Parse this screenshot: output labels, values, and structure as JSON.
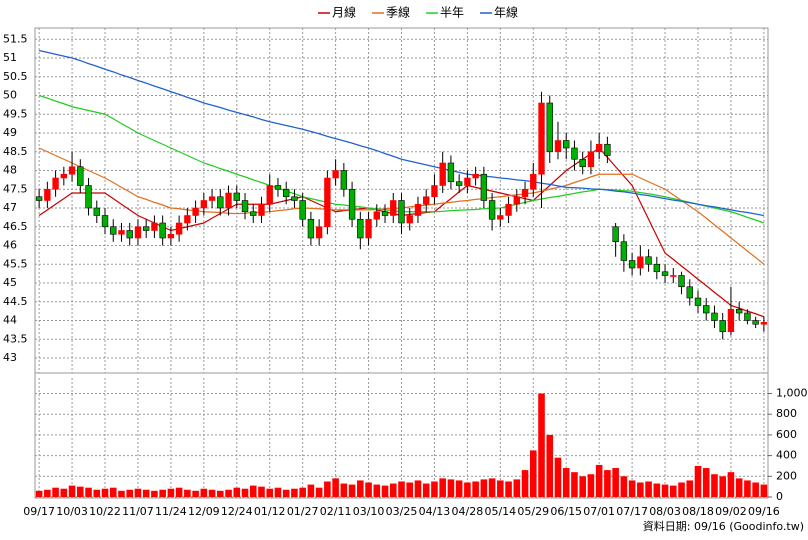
{
  "chart_data": {
    "type": "candlestick",
    "footnote": "資料日期: 09/16 (Goodinfo.tw)",
    "categories": [
      "09/17",
      null,
      null,
      null,
      "10/03",
      null,
      null,
      null,
      "10/22",
      null,
      null,
      null,
      "11/07",
      null,
      null,
      null,
      "11/24",
      null,
      null,
      null,
      "12/09",
      null,
      null,
      null,
      "12/24",
      null,
      null,
      null,
      "01/12",
      null,
      null,
      null,
      "01/27",
      null,
      null,
      null,
      "02/11",
      null,
      null,
      null,
      "03/10",
      null,
      null,
      null,
      "03/25",
      null,
      null,
      null,
      "04/13",
      null,
      null,
      null,
      "04/28",
      null,
      null,
      null,
      "05/14",
      null,
      null,
      null,
      "05/29",
      null,
      null,
      null,
      "06/15",
      null,
      null,
      null,
      "07/01",
      null,
      null,
      null,
      "07/17",
      null,
      null,
      null,
      "08/03",
      null,
      null,
      null,
      "08/18",
      null,
      null,
      null,
      "09/02",
      null,
      null,
      null,
      "09/16"
    ],
    "open": [
      47.3,
      47.2,
      47.5,
      47.8,
      47.9,
      48.1,
      47.6,
      47.0,
      46.8,
      46.5,
      46.3,
      46.4,
      46.2,
      46.5,
      46.4,
      46.6,
      46.2,
      46.3,
      46.6,
      46.8,
      47.0,
      47.2,
      47.3,
      47.0,
      47.4,
      47.2,
      46.9,
      46.8,
      47.1,
      47.6,
      47.5,
      47.3,
      47.2,
      46.7,
      46.2,
      46.5,
      47.8,
      48.0,
      47.5,
      46.7,
      46.2,
      46.7,
      46.9,
      46.8,
      47.2,
      46.6,
      46.8,
      47.1,
      47.3,
      47.6,
      48.2,
      47.7,
      47.6,
      47.8,
      47.9,
      47.2,
      46.7,
      46.8,
      47.1,
      47.3,
      47.5,
      47.9,
      49.8,
      48.5,
      48.8,
      48.6,
      48.3,
      48.1,
      48.5,
      48.7,
      46.5,
      46.1,
      45.6,
      45.4,
      45.7,
      45.5,
      45.3,
      45.2,
      45.2,
      44.9,
      44.6,
      44.4,
      44.2,
      44.0,
      43.7,
      44.3,
      44.2,
      44.0,
      43.9
    ],
    "high": [
      47.5,
      47.7,
      48.0,
      48.1,
      48.5,
      48.3,
      47.8,
      47.2,
      47.0,
      46.7,
      46.6,
      46.6,
      46.7,
      46.7,
      46.8,
      46.8,
      46.5,
      46.8,
      47.0,
      47.2,
      47.4,
      47.5,
      47.5,
      47.6,
      47.6,
      47.4,
      47.1,
      47.3,
      47.9,
      47.8,
      47.7,
      47.5,
      47.4,
      46.9,
      46.7,
      48.0,
      48.3,
      48.2,
      47.7,
      46.9,
      46.9,
      47.1,
      47.1,
      47.4,
      47.4,
      47.0,
      47.3,
      47.5,
      47.9,
      48.5,
      48.4,
      47.9,
      48.0,
      48.1,
      48.1,
      47.4,
      47.0,
      47.3,
      47.5,
      47.7,
      48.2,
      50.1,
      50.0,
      49.3,
      49.0,
      48.8,
      48.5,
      48.8,
      49.0,
      48.9,
      46.6,
      46.3,
      45.8,
      46.0,
      45.9,
      45.7,
      45.5,
      45.4,
      45.3,
      45.1,
      44.8,
      44.6,
      44.4,
      44.2,
      44.9,
      44.5,
      44.3,
      44.1,
      44.1
    ],
    "low": [
      47.0,
      47.0,
      47.3,
      47.6,
      47.7,
      47.4,
      46.8,
      46.6,
      46.3,
      46.1,
      46.1,
      46.0,
      46.0,
      46.2,
      46.2,
      46.0,
      46.0,
      46.1,
      46.4,
      46.6,
      46.8,
      47.0,
      46.8,
      46.8,
      47.0,
      46.7,
      46.6,
      46.6,
      46.9,
      47.3,
      47.1,
      47.0,
      46.5,
      46.0,
      46.0,
      46.3,
      47.6,
      47.3,
      46.5,
      45.9,
      46.0,
      46.5,
      46.6,
      46.6,
      46.3,
      46.4,
      46.6,
      46.9,
      47.1,
      47.4,
      47.5,
      47.4,
      47.4,
      47.6,
      47.0,
      46.4,
      46.5,
      46.6,
      46.9,
      47.1,
      47.3,
      47.0,
      48.2,
      48.3,
      48.3,
      48.0,
      47.9,
      47.9,
      48.3,
      48.2,
      45.7,
      45.3,
      45.2,
      45.2,
      45.3,
      45.1,
      45.0,
      45.0,
      44.7,
      44.4,
      44.2,
      44.0,
      43.8,
      43.5,
      43.6,
      44.0,
      43.9,
      43.8,
      43.7
    ],
    "close": [
      47.2,
      47.5,
      47.8,
      47.9,
      48.1,
      47.6,
      47.0,
      46.8,
      46.5,
      46.3,
      46.4,
      46.2,
      46.5,
      46.4,
      46.6,
      46.2,
      46.3,
      46.6,
      46.8,
      47.0,
      47.2,
      47.3,
      47.0,
      47.4,
      47.2,
      46.9,
      46.8,
      47.1,
      47.6,
      47.5,
      47.3,
      47.2,
      46.7,
      46.2,
      46.5,
      47.8,
      48.0,
      47.5,
      46.7,
      46.2,
      46.7,
      46.9,
      46.8,
      47.2,
      46.6,
      46.8,
      47.1,
      47.3,
      47.6,
      48.2,
      47.7,
      47.6,
      47.8,
      47.9,
      47.2,
      46.7,
      46.8,
      47.1,
      47.3,
      47.5,
      47.9,
      49.8,
      48.5,
      48.8,
      48.6,
      48.3,
      48.1,
      48.5,
      48.7,
      48.4,
      46.1,
      45.6,
      45.4,
      45.7,
      45.5,
      45.3,
      45.2,
      45.2,
      44.9,
      44.6,
      44.4,
      44.2,
      44.0,
      43.7,
      44.3,
      44.2,
      44.0,
      43.9,
      43.95
    ],
    "up_color": "#ff0000",
    "down_color": "#00b000",
    "volume": [
      60,
      70,
      90,
      80,
      110,
      100,
      90,
      70,
      80,
      90,
      60,
      70,
      80,
      70,
      60,
      70,
      80,
      90,
      70,
      60,
      80,
      70,
      60,
      70,
      90,
      80,
      110,
      100,
      80,
      90,
      70,
      80,
      90,
      120,
      90,
      150,
      180,
      130,
      120,
      160,
      140,
      120,
      110,
      130,
      150,
      140,
      160,
      130,
      150,
      180,
      170,
      160,
      140,
      150,
      170,
      180,
      160,
      150,
      170,
      260,
      450,
      1000,
      600,
      380,
      280,
      240,
      200,
      220,
      310,
      260,
      280,
      200,
      160,
      140,
      150,
      130,
      120,
      110,
      140,
      160,
      300,
      280,
      220,
      200,
      240,
      180,
      160,
      140,
      120
    ],
    "volume_color": "#ff0000",
    "series": [
      {
        "name": "月線",
        "color": "#cc0000",
        "values": [
          46.8,
          46.95,
          47.1,
          47.25,
          47.4,
          47.4,
          47.4,
          47.4,
          47.4,
          47.25,
          47.1,
          46.95,
          46.8,
          46.7,
          46.6,
          46.5,
          46.4,
          46.45,
          46.5,
          46.55,
          46.6,
          46.73,
          46.85,
          46.98,
          47.1,
          47.1,
          47.1,
          47.1,
          47.1,
          47.15,
          47.2,
          47.25,
          47.3,
          47.2,
          47.1,
          47.0,
          46.9,
          46.93,
          46.95,
          46.98,
          47.0,
          46.95,
          46.9,
          46.85,
          46.8,
          46.83,
          46.85,
          46.88,
          46.9,
          47.08,
          47.25,
          47.43,
          47.6,
          47.55,
          47.5,
          47.45,
          47.4,
          47.35,
          47.3,
          47.25,
          47.2,
          47.4,
          47.6,
          47.8,
          48.0,
          48.15,
          48.3,
          48.45,
          48.6,
          48.35,
          48.1,
          47.85,
          47.6,
          47.15,
          46.7,
          46.25,
          45.8,
          45.63,
          45.45,
          45.28,
          45.1,
          44.93,
          44.75,
          44.58,
          44.4,
          44.33,
          44.25,
          44.18,
          44.1
        ]
      },
      {
        "name": "季線",
        "color": "#e07020",
        "values": [
          48.6,
          48.5,
          48.4,
          48.3,
          48.2,
          48.1,
          48.0,
          47.9,
          47.8,
          47.68,
          47.55,
          47.43,
          47.3,
          47.23,
          47.15,
          47.08,
          47.0,
          46.98,
          46.95,
          46.93,
          46.9,
          46.89,
          46.88,
          46.86,
          46.85,
          46.86,
          46.88,
          46.89,
          46.9,
          46.93,
          46.95,
          46.98,
          47.0,
          46.99,
          46.98,
          46.96,
          46.95,
          46.95,
          46.95,
          46.95,
          46.95,
          46.96,
          46.98,
          46.99,
          47.0,
          47.03,
          47.05,
          47.08,
          47.1,
          47.13,
          47.15,
          47.18,
          47.2,
          47.23,
          47.25,
          47.28,
          47.3,
          47.33,
          47.35,
          47.38,
          47.4,
          47.45,
          47.5,
          47.55,
          47.6,
          47.68,
          47.75,
          47.83,
          47.9,
          47.9,
          47.9,
          47.9,
          47.9,
          47.8,
          47.7,
          47.6,
          47.5,
          47.35,
          47.2,
          47.05,
          46.9,
          46.73,
          46.55,
          46.38,
          46.2,
          46.03,
          45.85,
          45.68,
          45.5
        ]
      },
      {
        "name": "半年",
        "color": "#22cc22",
        "values": [
          50.0,
          49.93,
          49.85,
          49.78,
          49.7,
          49.65,
          49.6,
          49.55,
          49.5,
          49.38,
          49.25,
          49.13,
          49.0,
          48.9,
          48.8,
          48.7,
          48.6,
          48.5,
          48.4,
          48.3,
          48.2,
          48.13,
          48.05,
          47.98,
          47.9,
          47.83,
          47.75,
          47.68,
          47.6,
          47.53,
          47.45,
          47.38,
          47.3,
          47.25,
          47.2,
          47.15,
          47.1,
          47.08,
          47.05,
          47.03,
          47.0,
          46.98,
          46.95,
          46.93,
          46.9,
          46.9,
          46.9,
          46.9,
          46.9,
          46.91,
          46.93,
          46.94,
          46.95,
          46.96,
          46.98,
          46.99,
          47.0,
          47.05,
          47.1,
          47.15,
          47.2,
          47.24,
          47.28,
          47.31,
          47.35,
          47.39,
          47.43,
          47.46,
          47.5,
          47.49,
          47.48,
          47.46,
          47.45,
          47.41,
          47.38,
          47.34,
          47.3,
          47.25,
          47.2,
          47.15,
          47.1,
          47.05,
          47.0,
          46.95,
          46.9,
          46.83,
          46.75,
          46.68,
          46.6
        ]
      },
      {
        "name": "年線",
        "color": "#2060d0",
        "values": [
          51.2,
          51.15,
          51.1,
          51.05,
          51.0,
          50.93,
          50.85,
          50.78,
          50.7,
          50.63,
          50.55,
          50.48,
          50.4,
          50.33,
          50.25,
          50.18,
          50.1,
          50.03,
          49.95,
          49.88,
          49.8,
          49.74,
          49.68,
          49.61,
          49.55,
          49.49,
          49.43,
          49.36,
          49.3,
          49.25,
          49.2,
          49.15,
          49.1,
          49.04,
          48.98,
          48.91,
          48.85,
          48.79,
          48.73,
          48.66,
          48.6,
          48.53,
          48.45,
          48.38,
          48.3,
          48.25,
          48.2,
          48.15,
          48.1,
          48.05,
          48.0,
          47.95,
          47.9,
          47.88,
          47.85,
          47.83,
          47.8,
          47.78,
          47.75,
          47.73,
          47.7,
          47.66,
          47.63,
          47.59,
          47.55,
          47.54,
          47.53,
          47.51,
          47.5,
          47.48,
          47.45,
          47.43,
          47.4,
          47.36,
          47.33,
          47.29,
          47.25,
          47.21,
          47.18,
          47.14,
          47.1,
          47.06,
          47.03,
          46.99,
          46.95,
          46.91,
          46.88,
          46.84,
          46.8
        ]
      }
    ],
    "ylim": [
      42.6,
      51.8
    ],
    "yticks": [
      43,
      43.5,
      44,
      44.5,
      45,
      45.5,
      46,
      46.5,
      47,
      47.5,
      48,
      48.5,
      49,
      49.5,
      50,
      50.5,
      51,
      51.5
    ],
    "y2lim": [
      0,
      1150
    ],
    "y2ticks": [
      0,
      200,
      400,
      600,
      800,
      {
        "value": 1000,
        "label": "1,000"
      }
    ],
    "grid": true
  }
}
